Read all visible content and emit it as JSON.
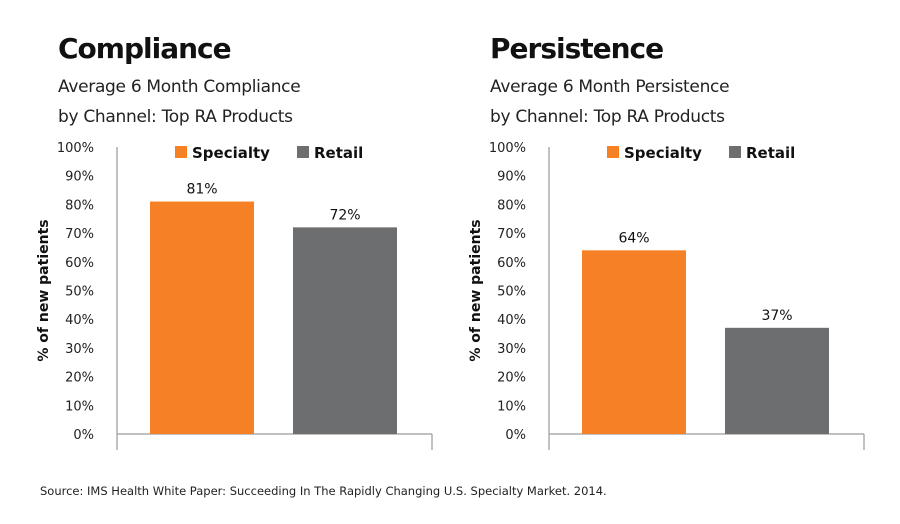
{
  "chart_data": [
    {
      "type": "bar",
      "title": "Compliance",
      "subtitle_lines": [
        "Average 6 Month Compliance",
        "by Channel: Top RA Products"
      ],
      "ylabel": "% of new patients",
      "ylim": [
        0,
        100
      ],
      "yticks": [
        "0%",
        "10%",
        "20%",
        "30%",
        "40%",
        "50%",
        "60%",
        "70%",
        "80%",
        "90%",
        "100%"
      ],
      "categories": [
        "Specialty",
        "Retail"
      ],
      "values": [
        81,
        72
      ],
      "data_labels": [
        "81%",
        "72%"
      ],
      "colors": [
        "#f58025",
        "#6d6e70"
      ],
      "legend": [
        "Specialty",
        "Retail"
      ],
      "legend_position": "top",
      "grid": false
    },
    {
      "type": "bar",
      "title": "Persistence",
      "subtitle_lines": [
        "Average 6 Month Persistence",
        "by Channel: Top RA Products"
      ],
      "ylabel": "% of new patients",
      "ylim": [
        0,
        100
      ],
      "yticks": [
        "0%",
        "10%",
        "20%",
        "30%",
        "40%",
        "50%",
        "60%",
        "70%",
        "80%",
        "90%",
        "100%"
      ],
      "categories": [
        "Specialty",
        "Retail"
      ],
      "values": [
        64,
        37
      ],
      "data_labels": [
        "64%",
        "37%"
      ],
      "colors": [
        "#f58025",
        "#6d6e70"
      ],
      "legend": [
        "Specialty",
        "Retail"
      ],
      "legend_position": "top",
      "grid": false
    }
  ],
  "source": "Source: IMS Health White Paper: Succeeding In The Rapidly Changing U.S. Specialty Market. 2014."
}
